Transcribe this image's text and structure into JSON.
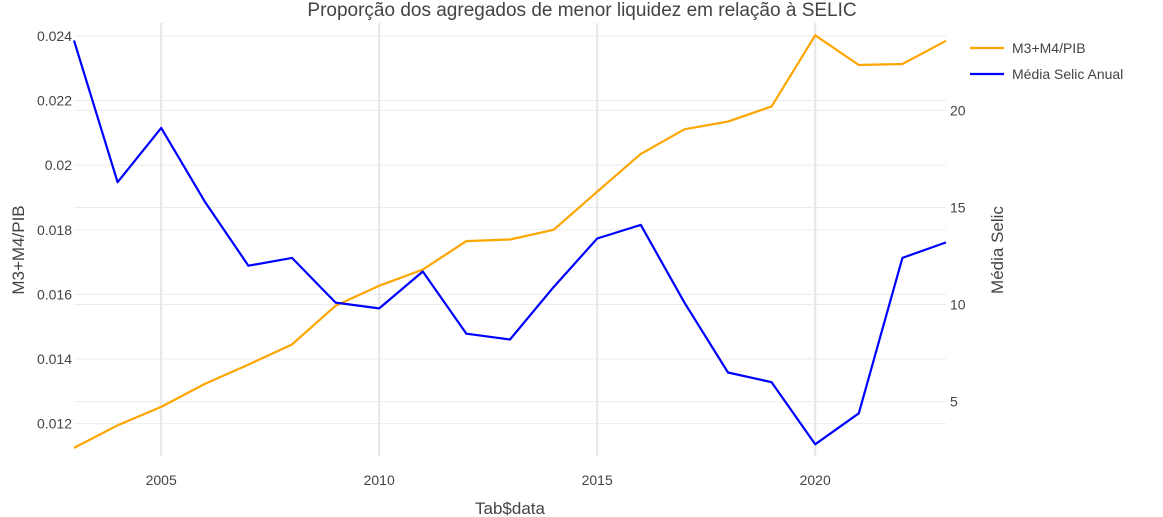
{
  "chart_data": {
    "type": "line",
    "title": "Proporção dos agregados de menor liquidez em relação à SELIC",
    "xlabel": "Tab$data",
    "ylabel_left": "M3+M4/PIB",
    "ylabel_right": "Média Selic",
    "x": [
      2003,
      2004,
      2005,
      2006,
      2007,
      2008,
      2009,
      2010,
      2011,
      2012,
      2013,
      2014,
      2015,
      2016,
      2017,
      2018,
      2019,
      2020,
      2021,
      2022,
      2023
    ],
    "xlim": [
      2003,
      2023
    ],
    "x_ticks": [
      "2005",
      "2010",
      "2015",
      "2020"
    ],
    "ylim_left": [
      0.011,
      0.0244
    ],
    "y_ticks_left": [
      "0.012",
      "0.014",
      "0.016",
      "0.018",
      "0.02",
      "0.022",
      "0.024"
    ],
    "ylim_right": [
      2.2,
      24.5
    ],
    "y_ticks_right": [
      "5",
      "10",
      "15",
      "20"
    ],
    "legend_position": "top-right",
    "series": [
      {
        "name": "M3+M4/PIB",
        "axis": "left",
        "color": "#FFA500",
        "values": [
          0.01125,
          0.01195,
          0.01252,
          0.01323,
          0.01383,
          0.01445,
          0.01565,
          0.01627,
          0.01677,
          0.01765,
          0.0177,
          0.018,
          0.01918,
          0.02035,
          0.02111,
          0.02135,
          0.02182,
          0.02402,
          0.0231,
          0.02313,
          0.02385
        ]
      },
      {
        "name": "Média Selic Anual",
        "axis": "right",
        "color": "#0000FF",
        "values": [
          23.6,
          16.3,
          19.1,
          15.3,
          12.0,
          12.4,
          10.1,
          9.8,
          11.7,
          8.5,
          8.2,
          10.9,
          13.4,
          14.1,
          10.1,
          6.5,
          6.0,
          2.8,
          4.4,
          12.4,
          13.2
        ]
      }
    ]
  }
}
